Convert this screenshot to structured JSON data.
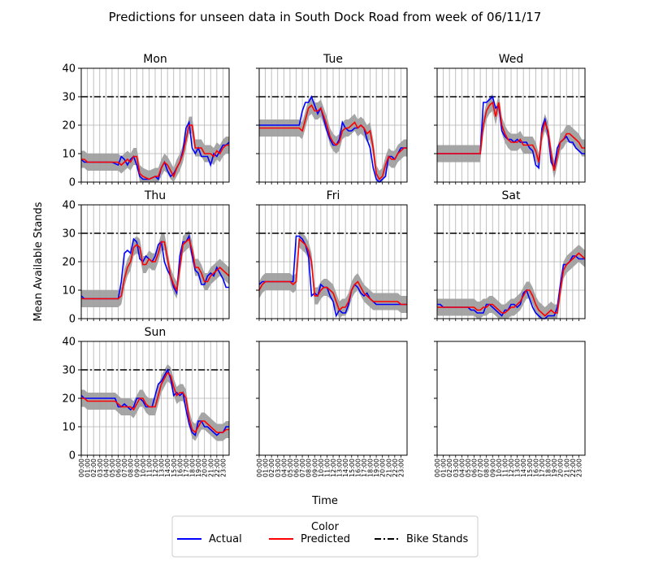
{
  "chart_data": {
    "type": "line",
    "title": "Predictions for unseen data in South Dock Road from week of 06/11/17",
    "xlabel": "Time",
    "ylabel": "Mean Available Stands",
    "ylim": [
      0,
      40
    ],
    "yticks": [
      0,
      10,
      20,
      30,
      40
    ],
    "xlim": [
      0,
      24
    ],
    "time_ticks": [
      "00:00",
      "01:00",
      "02:00",
      "03:00",
      "04:00",
      "05:00",
      "06:00",
      "07:00",
      "08:00",
      "09:00",
      "10:00",
      "11:00",
      "12:00",
      "13:00",
      "14:00",
      "15:00",
      "16:00",
      "17:00",
      "18:00",
      "19:00",
      "20:00",
      "21:00",
      "22:00",
      "23:00"
    ],
    "grid": true,
    "bike_stands": 30,
    "legend": {
      "title": "Color",
      "placement": "bottom-center",
      "entries": [
        {
          "label": "Actual",
          "color": "#0000ff",
          "style": "solid"
        },
        {
          "label": "Predicted",
          "color": "#ff0000",
          "style": "solid"
        },
        {
          "label": "Bike Stands",
          "color": "#000000",
          "style": "dashdot"
        }
      ]
    },
    "band_color": "#a0a0a0",
    "panels": [
      {
        "name": "Mon",
        "x": [
          0,
          0.5,
          1,
          2,
          3,
          4,
          5,
          6,
          6.5,
          7,
          7.5,
          8,
          8.5,
          9,
          9.5,
          10,
          11,
          12,
          12.5,
          13,
          13.5,
          14,
          14.5,
          15,
          15.5,
          16,
          16.5,
          17,
          17.5,
          18,
          18.5,
          19,
          19.5,
          20,
          20.5,
          21,
          21.5,
          22,
          22.5,
          23,
          23.5,
          24
        ],
        "actual": [
          8,
          7,
          7,
          7,
          7,
          7,
          7,
          6,
          9,
          8,
          6,
          8,
          9,
          6,
          2,
          1,
          1,
          2,
          1,
          5,
          7,
          4,
          2,
          3,
          5,
          7,
          11,
          19,
          21,
          12,
          10,
          12,
          9,
          9,
          9,
          6,
          10,
          9,
          11,
          13,
          13,
          14
        ],
        "predicted": [
          8,
          8,
          7,
          7,
          7,
          7,
          7,
          7,
          6,
          7,
          8,
          7,
          9,
          9,
          3,
          2,
          1,
          2,
          2,
          5,
          7,
          6,
          4,
          2,
          5,
          7,
          10,
          15,
          20,
          20,
          12,
          12,
          12,
          10,
          10,
          10,
          9,
          11,
          10,
          12,
          13,
          13
        ]
      },
      {
        "name": "Tue",
        "x": [
          0,
          1,
          2,
          3,
          4,
          5,
          6,
          6.5,
          7,
          7.5,
          8,
          8.5,
          9,
          9.5,
          10,
          10.5,
          11,
          11.5,
          12,
          12.5,
          13,
          13.5,
          14,
          14.5,
          15,
          15.5,
          16,
          16.5,
          17,
          17.5,
          18,
          18.5,
          19,
          19.5,
          20,
          20.5,
          21,
          21.5,
          22,
          22.5,
          23,
          23.5,
          24
        ],
        "actual": [
          20,
          20,
          20,
          20,
          20,
          20,
          20,
          20,
          25,
          28,
          28,
          30,
          27,
          24,
          26,
          22,
          18,
          15,
          13,
          13,
          15,
          21,
          19,
          18,
          18,
          19,
          19,
          20,
          19,
          15,
          12,
          5,
          1,
          0,
          1,
          2,
          9,
          9,
          8,
          10,
          12,
          12,
          12
        ],
        "predicted": [
          19,
          19,
          19,
          19,
          19,
          19,
          19,
          19,
          18,
          22,
          26,
          27,
          25,
          25,
          26,
          23,
          20,
          16,
          14,
          13,
          14,
          18,
          19,
          19,
          20,
          21,
          19,
          20,
          19,
          17,
          18,
          12,
          3,
          1,
          2,
          6,
          9,
          8,
          8,
          10,
          11,
          12,
          12
        ]
      },
      {
        "name": "Wed",
        "x": [
          0,
          1,
          2,
          3,
          4,
          5,
          6,
          7,
          7.5,
          8,
          8.5,
          9,
          9.5,
          10,
          10.5,
          11,
          11.5,
          12,
          12.5,
          13,
          13.5,
          14,
          14.5,
          15,
          15.5,
          16,
          16.5,
          17,
          17.5,
          18,
          18.5,
          19,
          19.5,
          20,
          20.5,
          21,
          21.5,
          22,
          22.5,
          23,
          23.5,
          24
        ],
        "actual": [
          10,
          10,
          10,
          10,
          10,
          10,
          10,
          10,
          28,
          28,
          29,
          30,
          26,
          27,
          18,
          16,
          15,
          15,
          14,
          15,
          14,
          14,
          14,
          12,
          11,
          6,
          5,
          19,
          22,
          17,
          7,
          5,
          12,
          14,
          15,
          16,
          14,
          14,
          12,
          11,
          10,
          10
        ],
        "predicted": [
          10,
          10,
          10,
          10,
          10,
          10,
          10,
          10,
          20,
          25,
          27,
          28,
          23,
          28,
          20,
          17,
          15,
          14,
          14,
          14,
          15,
          13,
          13,
          13,
          13,
          11,
          7,
          17,
          21,
          18,
          10,
          4,
          9,
          14,
          15,
          17,
          17,
          16,
          15,
          14,
          12,
          12
        ]
      },
      {
        "name": "Thu",
        "x": [
          0,
          0.5,
          1,
          2,
          3,
          4,
          5,
          6,
          6.5,
          7,
          7.5,
          8,
          8.5,
          9,
          9.5,
          10,
          10.5,
          11,
          11.5,
          12,
          12.5,
          13,
          13.5,
          14,
          14.5,
          15,
          15.5,
          16,
          16.5,
          17,
          17.5,
          18,
          18.5,
          19,
          19.5,
          20,
          20.5,
          21,
          21.5,
          22,
          22.5,
          23,
          23.5,
          24
        ],
        "actual": [
          8,
          7,
          7,
          7,
          7,
          7,
          7,
          7,
          13,
          23,
          24,
          23,
          28,
          27,
          21,
          20,
          22,
          21,
          20,
          22,
          26,
          27,
          20,
          17,
          15,
          11,
          9,
          22,
          27,
          27,
          29,
          22,
          17,
          16,
          12,
          12,
          15,
          16,
          15,
          18,
          16,
          14,
          11,
          11
        ],
        "predicted": [
          7,
          7,
          7,
          7,
          7,
          7,
          7,
          7,
          8,
          14,
          18,
          20,
          25,
          26,
          25,
          19,
          19,
          21,
          20,
          20,
          23,
          27,
          27,
          21,
          15,
          12,
          10,
          18,
          26,
          27,
          28,
          24,
          18,
          18,
          16,
          13,
          13,
          15,
          16,
          17,
          18,
          17,
          16,
          15
        ]
      },
      {
        "name": "Fri",
        "x": [
          0,
          0.5,
          1,
          2,
          3,
          4,
          5,
          5.5,
          6,
          6.5,
          7,
          7.5,
          8,
          8.5,
          9,
          9.5,
          10,
          10.5,
          11,
          11.5,
          12,
          12.5,
          13,
          13.5,
          14,
          14.5,
          15,
          15.5,
          16,
          16.5,
          17,
          17.5,
          18,
          18.5,
          19,
          19.5,
          20,
          20.5,
          21,
          21.5,
          22,
          22.5,
          23,
          23.5,
          24
        ],
        "actual": [
          12,
          13,
          13,
          13,
          13,
          13,
          13,
          13,
          29,
          29,
          28,
          26,
          22,
          8,
          9,
          8,
          12,
          11,
          11,
          8,
          6,
          1,
          3,
          2,
          2,
          5,
          10,
          12,
          11,
          9,
          8,
          9,
          7,
          6,
          5,
          5,
          5,
          5,
          5,
          5,
          5,
          5,
          5,
          5,
          5
        ],
        "predicted": [
          10,
          12,
          13,
          13,
          13,
          13,
          13,
          12,
          13,
          28,
          27,
          26,
          24,
          20,
          8,
          8,
          10,
          11,
          11,
          10,
          9,
          6,
          3,
          4,
          4,
          6,
          10,
          12,
          13,
          11,
          9,
          8,
          7,
          6,
          6,
          6,
          6,
          6,
          6,
          6,
          6,
          6,
          5,
          5,
          5
        ]
      },
      {
        "name": "Sat",
        "x": [
          0,
          0.5,
          1,
          2,
          3,
          4,
          5,
          5.5,
          6,
          6.5,
          7,
          7.5,
          8,
          8.5,
          9,
          9.5,
          10,
          10.5,
          11,
          11.5,
          12,
          12.5,
          13,
          13.5,
          14,
          14.5,
          15,
          15.5,
          16,
          16.5,
          17,
          17.5,
          18,
          18.5,
          19,
          19.5,
          20,
          20.5,
          21,
          21.5,
          22,
          22.5,
          23,
          23.5,
          24
        ],
        "actual": [
          5,
          5,
          4,
          4,
          4,
          4,
          4,
          3,
          3,
          2,
          2,
          2,
          5,
          5,
          4,
          3,
          2,
          1,
          3,
          3,
          5,
          5,
          4,
          5,
          9,
          10,
          7,
          4,
          2,
          1,
          0,
          0,
          1,
          1,
          1,
          4,
          12,
          19,
          19,
          20,
          22,
          22,
          21,
          21,
          21
        ],
        "predicted": [
          4,
          4,
          4,
          4,
          4,
          4,
          4,
          4,
          4,
          3,
          3,
          4,
          4,
          5,
          5,
          4,
          3,
          2,
          2,
          3,
          4,
          4,
          5,
          6,
          8,
          10,
          10,
          8,
          5,
          3,
          2,
          1,
          2,
          3,
          2,
          2,
          10,
          17,
          19,
          20,
          21,
          22,
          23,
          22,
          21
        ]
      },
      {
        "name": "Sun",
        "x": [
          0,
          0.5,
          1,
          2,
          3,
          4,
          5,
          5.5,
          6,
          6.5,
          7,
          7.5,
          8,
          8.5,
          9,
          9.5,
          10,
          10.5,
          11,
          11.5,
          12,
          12.5,
          13,
          13.5,
          14,
          14.5,
          15,
          15.5,
          16,
          16.5,
          17,
          17.5,
          18,
          18.5,
          19,
          19.5,
          20,
          20.5,
          21,
          21.5,
          22,
          22.5,
          23,
          23.5,
          24
        ],
        "actual": [
          21,
          20,
          20,
          20,
          20,
          20,
          20,
          20,
          17,
          17,
          18,
          17,
          16,
          17,
          20,
          20,
          19,
          17,
          17,
          17,
          21,
          25,
          26,
          28,
          30,
          27,
          21,
          22,
          21,
          22,
          16,
          11,
          8,
          7,
          12,
          12,
          10,
          10,
          9,
          8,
          7,
          8,
          8,
          10,
          10
        ],
        "predicted": [
          20,
          20,
          19,
          19,
          19,
          19,
          19,
          19,
          18,
          17,
          17,
          17,
          17,
          16,
          18,
          20,
          20,
          18,
          17,
          17,
          17,
          21,
          25,
          27,
          29,
          28,
          24,
          21,
          22,
          22,
          20,
          13,
          9,
          8,
          10,
          12,
          12,
          11,
          10,
          9,
          8,
          8,
          8,
          9,
          9
        ]
      },
      {
        "name": "",
        "x": [],
        "actual": [],
        "predicted": []
      },
      {
        "name": "",
        "x": [],
        "actual": [],
        "predicted": []
      }
    ]
  }
}
